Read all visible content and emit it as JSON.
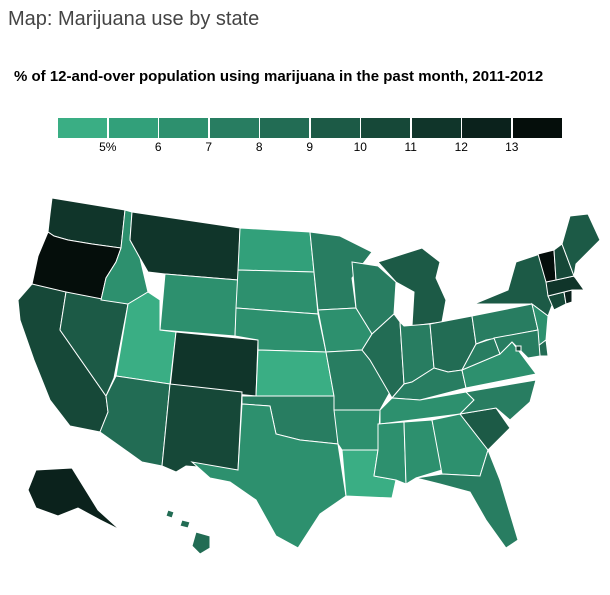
{
  "header": {
    "title": "Map: Marijuana use by state",
    "subtitle": "% of 12-and-over population using marijuana in the past month, 2011-2012"
  },
  "legend": {
    "colors": [
      "#3aae84",
      "#32a07a",
      "#2d906e",
      "#287d61",
      "#226c54",
      "#1c5a46",
      "#164838",
      "#10352a",
      "#0b221c",
      "#050e0b"
    ],
    "ticks": [
      "5%",
      "6",
      "7",
      "8",
      "9",
      "10",
      "11",
      "12",
      "13"
    ]
  },
  "map": {
    "states": [
      {
        "name": "WA",
        "bin": 7
      },
      {
        "name": "OR",
        "bin": 9
      },
      {
        "name": "CA",
        "bin": 6
      },
      {
        "name": "NV",
        "bin": 5
      },
      {
        "name": "ID",
        "bin": 2
      },
      {
        "name": "MT",
        "bin": 7
      },
      {
        "name": "WY",
        "bin": 2
      },
      {
        "name": "UT",
        "bin": 0
      },
      {
        "name": "CO",
        "bin": 7
      },
      {
        "name": "AZ",
        "bin": 4
      },
      {
        "name": "NM",
        "bin": 6
      },
      {
        "name": "ND",
        "bin": 1
      },
      {
        "name": "SD",
        "bin": 2
      },
      {
        "name": "NE",
        "bin": 2
      },
      {
        "name": "KS",
        "bin": 0
      },
      {
        "name": "OK",
        "bin": 3
      },
      {
        "name": "TX",
        "bin": 2
      },
      {
        "name": "MN",
        "bin": 3
      },
      {
        "name": "IA",
        "bin": 2
      },
      {
        "name": "MO",
        "bin": 3
      },
      {
        "name": "AR",
        "bin": 2
      },
      {
        "name": "LA",
        "bin": 0
      },
      {
        "name": "WI",
        "bin": 3
      },
      {
        "name": "IL",
        "bin": 4
      },
      {
        "name": "MI",
        "bin": 5
      },
      {
        "name": "IN",
        "bin": 3
      },
      {
        "name": "OH",
        "bin": 4
      },
      {
        "name": "KY",
        "bin": 3
      },
      {
        "name": "TN",
        "bin": 2
      },
      {
        "name": "MS",
        "bin": 2
      },
      {
        "name": "AL",
        "bin": 2
      },
      {
        "name": "GA",
        "bin": 2
      },
      {
        "name": "FL",
        "bin": 3
      },
      {
        "name": "SC",
        "bin": 5
      },
      {
        "name": "NC",
        "bin": 3
      },
      {
        "name": "VA",
        "bin": 2
      },
      {
        "name": "WV",
        "bin": 3
      },
      {
        "name": "PA",
        "bin": 3
      },
      {
        "name": "NY",
        "bin": 5
      },
      {
        "name": "NJ",
        "bin": 2
      },
      {
        "name": "DE",
        "bin": 4
      },
      {
        "name": "MD",
        "bin": 3
      },
      {
        "name": "DC",
        "bin": 6
      },
      {
        "name": "CT",
        "bin": 6
      },
      {
        "name": "RI",
        "bin": 8
      },
      {
        "name": "MA",
        "bin": 7
      },
      {
        "name": "VT",
        "bin": 9
      },
      {
        "name": "NH",
        "bin": 6
      },
      {
        "name": "ME",
        "bin": 5
      },
      {
        "name": "AK",
        "bin": 8
      },
      {
        "name": "HI",
        "bin": 4
      }
    ]
  }
}
